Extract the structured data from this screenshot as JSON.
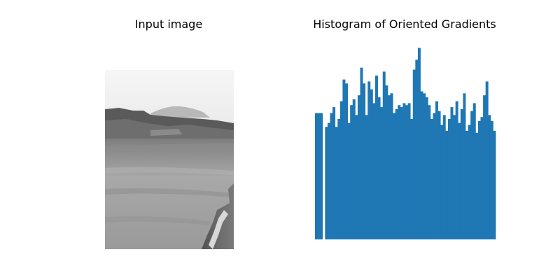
{
  "chart_data": [
    {
      "type": "image",
      "title": "Input image",
      "content": "grayscale photo",
      "axis": "off"
    },
    {
      "type": "bar",
      "title": "Histogram of Oriented Gradients",
      "axis": "off",
      "color": "#1f77b4",
      "n_bins": 72,
      "values": [
        0.64,
        0.64,
        0.64,
        0.0,
        0.57,
        0.59,
        0.64,
        0.67,
        0.57,
        0.61,
        0.7,
        0.81,
        0.79,
        0.59,
        0.68,
        0.71,
        0.63,
        0.73,
        0.87,
        0.79,
        0.63,
        0.8,
        0.76,
        0.69,
        0.83,
        0.72,
        0.67,
        0.85,
        0.78,
        0.73,
        0.74,
        0.64,
        0.66,
        0.68,
        0.67,
        0.69,
        0.68,
        0.69,
        0.61,
        0.86,
        0.91,
        0.97,
        0.75,
        0.74,
        0.72,
        0.68,
        0.61,
        0.64,
        0.7,
        0.65,
        0.58,
        0.63,
        0.55,
        0.61,
        0.67,
        0.63,
        0.7,
        0.59,
        0.66,
        0.74,
        0.55,
        0.58,
        0.65,
        0.69,
        0.54,
        0.6,
        0.62,
        0.73,
        0.8,
        0.63,
        0.6,
        0.55
      ]
    }
  ]
}
